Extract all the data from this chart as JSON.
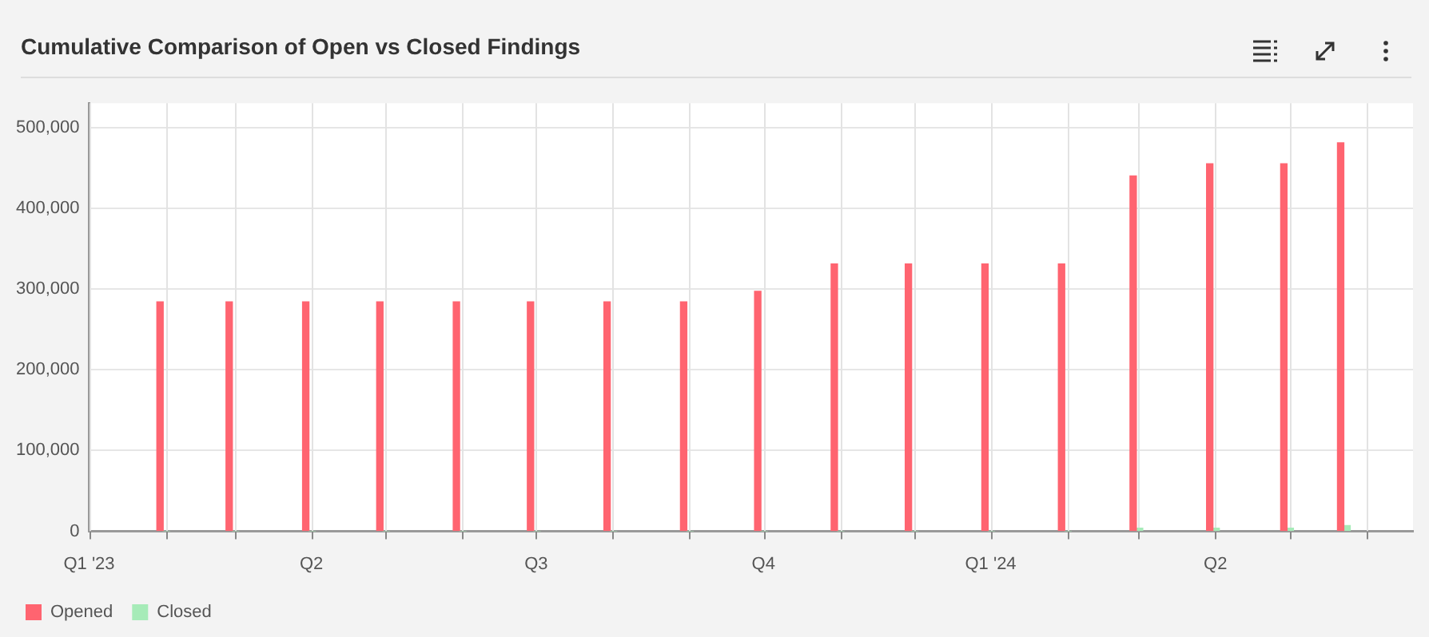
{
  "chart_data": {
    "type": "bar",
    "title": "Cumulative Comparison of Open vs Closed Findings",
    "x": [
      "2023-01-31",
      "2023-02-28",
      "2023-03-31",
      "2023-04-30",
      "2023-05-31",
      "2023-06-30",
      "2023-07-31",
      "2023-08-31",
      "2023-09-30",
      "2023-10-31",
      "2023-11-30",
      "2023-12-31",
      "2024-01-31",
      "2024-02-29",
      "2024-03-31",
      "2024-04-30",
      "2024-05-23"
    ],
    "series": [
      {
        "name": "Opened",
        "color": "#ff6470",
        "values": [
          284000,
          284000,
          284000,
          284000,
          284000,
          284000,
          284000,
          284000,
          297000,
          331000,
          331000,
          331000,
          331000,
          440000,
          455000,
          455000,
          481000
        ]
      },
      {
        "name": "Closed",
        "color": "#a6ebb8",
        "values": [
          0,
          0,
          0,
          0,
          0,
          0,
          0,
          0,
          0,
          0,
          0,
          0,
          0,
          4000,
          4000,
          4000,
          7000
        ]
      }
    ],
    "xlim": [
      "2023-01-01",
      "2024-06-20"
    ],
    "xticks": [
      {
        "value": "2023-01-01",
        "label": "Q1 '23"
      },
      {
        "value": "2023-02-01",
        "label": null
      },
      {
        "value": "2023-03-01",
        "label": null
      },
      {
        "value": "2023-04-01",
        "label": "Q2"
      },
      {
        "value": "2023-05-01",
        "label": null
      },
      {
        "value": "2023-06-01",
        "label": null
      },
      {
        "value": "2023-07-01",
        "label": "Q3"
      },
      {
        "value": "2023-08-01",
        "label": null
      },
      {
        "value": "2023-09-01",
        "label": null
      },
      {
        "value": "2023-10-01",
        "label": "Q4"
      },
      {
        "value": "2023-11-01",
        "label": null
      },
      {
        "value": "2023-12-01",
        "label": null
      },
      {
        "value": "2024-01-01",
        "label": "Q1 '24"
      },
      {
        "value": "2024-02-01",
        "label": null
      },
      {
        "value": "2024-03-01",
        "label": null
      },
      {
        "value": "2024-04-01",
        "label": "Q2"
      },
      {
        "value": "2024-05-01",
        "label": null
      },
      {
        "value": "2024-06-01",
        "label": null
      }
    ],
    "ylim": [
      0,
      530000
    ],
    "yticks": [
      0,
      {
        "value": 100000,
        "label": "100,000"
      },
      {
        "value": 200000,
        "label": "200,000"
      },
      {
        "value": 300000,
        "label": "300,000"
      },
      {
        "value": 400000,
        "label": "400,000"
      },
      {
        "value": 500000,
        "label": "500,000"
      }
    ],
    "grid": true,
    "legend": "bottom left"
  }
}
